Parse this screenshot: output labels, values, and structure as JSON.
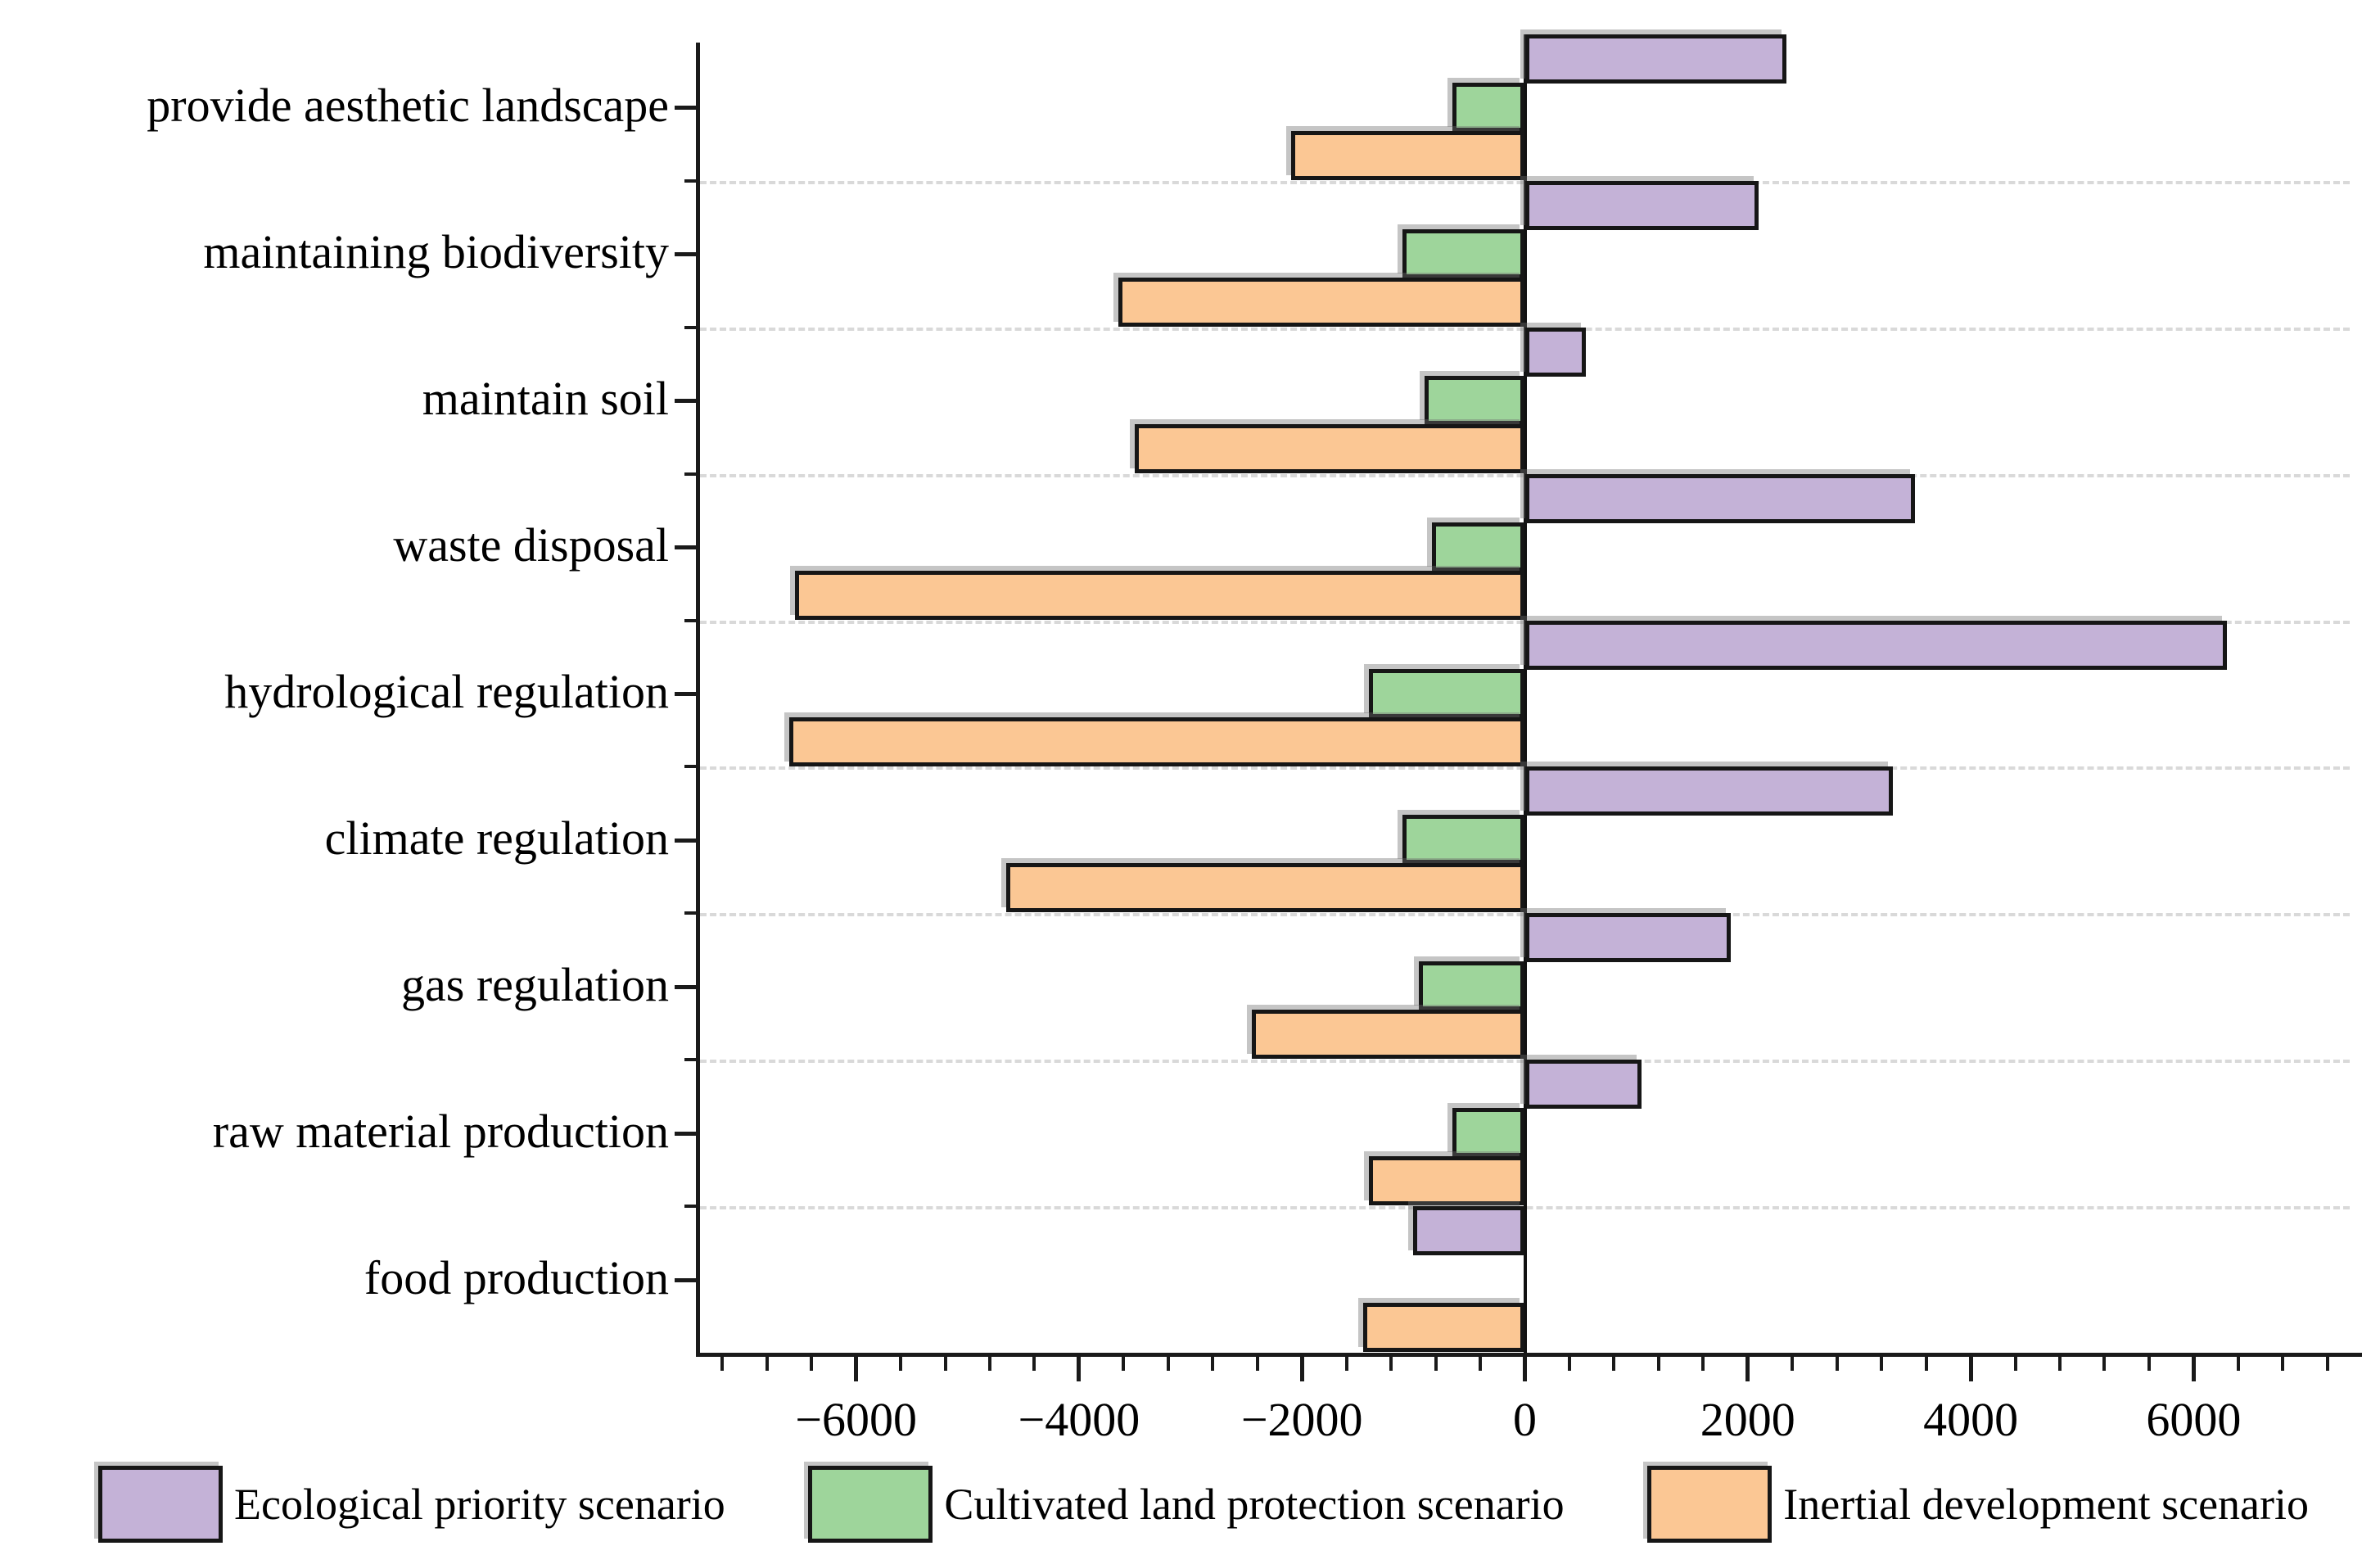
{
  "chart_data": {
    "type": "bar",
    "orientation": "horizontal",
    "title": "",
    "xlabel": "",
    "ylabel": "",
    "grid": "horizontal-dashed",
    "legend_position": "bottom",
    "xlim": [
      -7400,
      7400
    ],
    "x_major_ticks": [
      -6000,
      -4000,
      -2000,
      0,
      2000,
      4000,
      6000
    ],
    "x_major_tick_labels": [
      "−6000",
      "−4000",
      "−2000",
      "0",
      "2000",
      "4000",
      "6000"
    ],
    "x_minor_tick_step": 400,
    "categories": [
      "provide aesthetic landscape",
      "maintaining biodiversity",
      "maintain soil",
      "waste disposal",
      "hydrological regulation",
      "climate regulation",
      "gas regulation",
      "raw material production",
      "food production"
    ],
    "series": [
      {
        "name": "Ecological priority scenario",
        "color": "#c4b2d7",
        "values": [
          2350,
          2100,
          550,
          3500,
          6300,
          3300,
          1850,
          1050,
          -1000
        ]
      },
      {
        "name": "Cultivated land protection scenario",
        "color": "#9ed59b",
        "values": [
          -650,
          -1100,
          -900,
          -830,
          -1400,
          -1100,
          -950,
          -650,
          0
        ]
      },
      {
        "name": "Inertial development scenario",
        "color": "#fbc794",
        "values": [
          -2100,
          -3650,
          -3500,
          -6550,
          -6600,
          -4650,
          -2450,
          -1400,
          -1450
        ]
      }
    ],
    "colors": {
      "bar_border": "#161616",
      "axis": "#1a1a1a",
      "gridline": "#d9d9d9",
      "background": "#ffffff"
    }
  }
}
